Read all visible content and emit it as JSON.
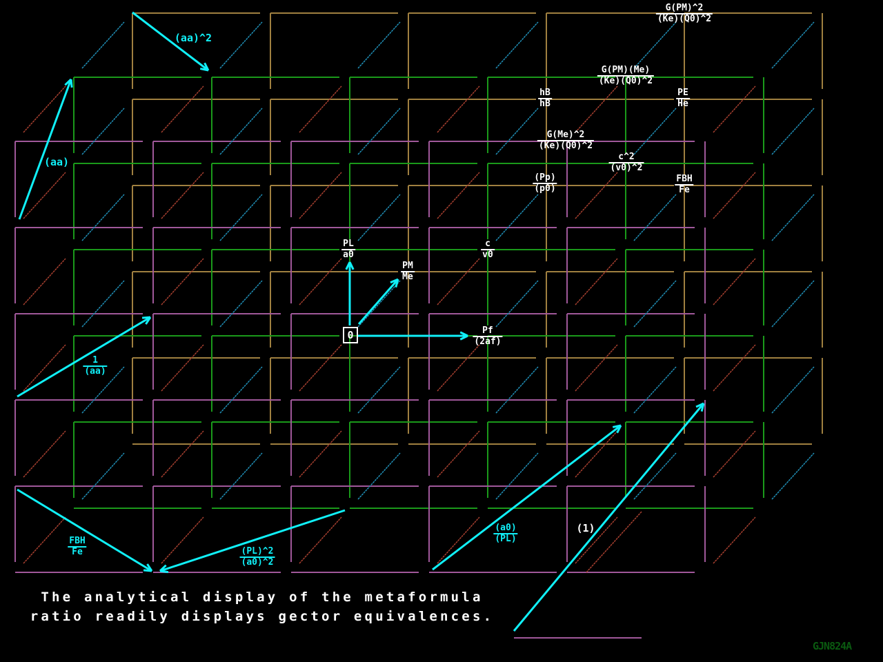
{
  "diagram": {
    "colors": {
      "front_grid": "#a0589a",
      "middle_grid": "#1a9a1a",
      "back_grid": "#a08040",
      "front_diagonal": "#a84030",
      "back_diagonal": "#2090b8",
      "vector": "#10f0f8",
      "label": "#ffffff"
    },
    "origin_label": "0",
    "white_labels": [
      {
        "num": "G(PM)^2",
        "den": "(Ke)(Q0)^2"
      },
      {
        "num": "G(PM)(Me)",
        "den": "(Ke)(Q0)^2"
      },
      {
        "num": "hB",
        "den": "hB"
      },
      {
        "num": "PE",
        "den": "He"
      },
      {
        "num": "G(Me)^2",
        "den": "(Ke)(Q0)^2"
      },
      {
        "num": "c^2",
        "den": "(v0)^2"
      },
      {
        "num": "(Pp)",
        "den": "(p0)"
      },
      {
        "num": "FBH",
        "den": "Fe"
      },
      {
        "num": "PL",
        "den": "a0"
      },
      {
        "num": "PM",
        "den": "Me"
      },
      {
        "num": "c",
        "den": "v0"
      },
      {
        "num": "Pf",
        "den": "(2af)"
      }
    ],
    "vector_labels": [
      {
        "text": "(aa)^2"
      },
      {
        "text": "(aa)"
      },
      {
        "num": "1",
        "den": "(aa)"
      },
      {
        "num": "FBH",
        "den": "Fe"
      },
      {
        "num": "(PL)^2",
        "den": "(a0)^2"
      },
      {
        "num": "(a0)",
        "den": "(PL)"
      }
    ],
    "unit_label": "(1)",
    "caption": [
      "The analytical display of the metaformula",
      "ratio readily displays gector equivalences."
    ],
    "signature": "GJN824A"
  }
}
